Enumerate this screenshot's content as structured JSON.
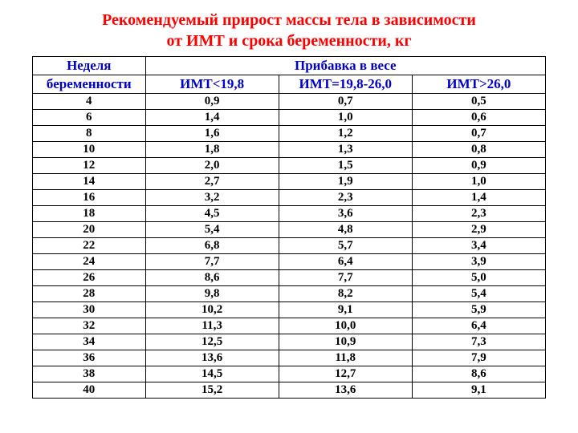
{
  "title_line1": "Рекомендуемый прирост массы тела в зависимости",
  "title_line2": "от ИМТ и срока беременности, кг",
  "header": {
    "col1_line1": "Неделя",
    "col1_line2": "беременности",
    "group_label": "Прибавка в весе",
    "col2": "ИМТ<19,8",
    "col3": "ИМТ=19,8-26,0",
    "col4": "ИМТ>26,0"
  },
  "rows": [
    {
      "week": "4",
      "v1": "0,9",
      "v2": "0,7",
      "v3": "0,5"
    },
    {
      "week": "6",
      "v1": "1,4",
      "v2": "1,0",
      "v3": "0,6"
    },
    {
      "week": "8",
      "v1": "1,6",
      "v2": "1,2",
      "v3": "0,7"
    },
    {
      "week": "10",
      "v1": "1,8",
      "v2": "1,3",
      "v3": "0,8"
    },
    {
      "week": "12",
      "v1": "2,0",
      "v2": "1,5",
      "v3": "0,9"
    },
    {
      "week": "14",
      "v1": "2,7",
      "v2": "1,9",
      "v3": "1,0"
    },
    {
      "week": "16",
      "v1": "3,2",
      "v2": "2,3",
      "v3": "1,4"
    },
    {
      "week": "18",
      "v1": "4,5",
      "v2": "3,6",
      "v3": "2,3"
    },
    {
      "week": "20",
      "v1": "5,4",
      "v2": "4,8",
      "v3": "2,9"
    },
    {
      "week": "22",
      "v1": "6,8",
      "v2": "5,7",
      "v3": "3,4"
    },
    {
      "week": "24",
      "v1": "7,7",
      "v2": "6,4",
      "v3": "3,9"
    },
    {
      "week": "26",
      "v1": "8,6",
      "v2": "7,7",
      "v3": "5,0"
    },
    {
      "week": "28",
      "v1": "9,8",
      "v2": "8,2",
      "v3": "5,4"
    },
    {
      "week": "30",
      "v1": "10,2",
      "v2": "9,1",
      "v3": "5,9"
    },
    {
      "week": "32",
      "v1": "11,3",
      "v2": "10,0",
      "v3": "6,4"
    },
    {
      "week": "34",
      "v1": "12,5",
      "v2": "10,9",
      "v3": "7,3"
    },
    {
      "week": "36",
      "v1": "13,6",
      "v2": "11,8",
      "v3": "7,9"
    },
    {
      "week": "38",
      "v1": "14,5",
      "v2": "12,7",
      "v3": "8,6"
    },
    {
      "week": "40",
      "v1": "15,2",
      "v2": "13,6",
      "v3": "9,1"
    }
  ],
  "colors": {
    "title": "#ff0000",
    "header": "#0000cc",
    "cell_text": "#000000",
    "border": "#000000",
    "background": "#ffffff"
  }
}
